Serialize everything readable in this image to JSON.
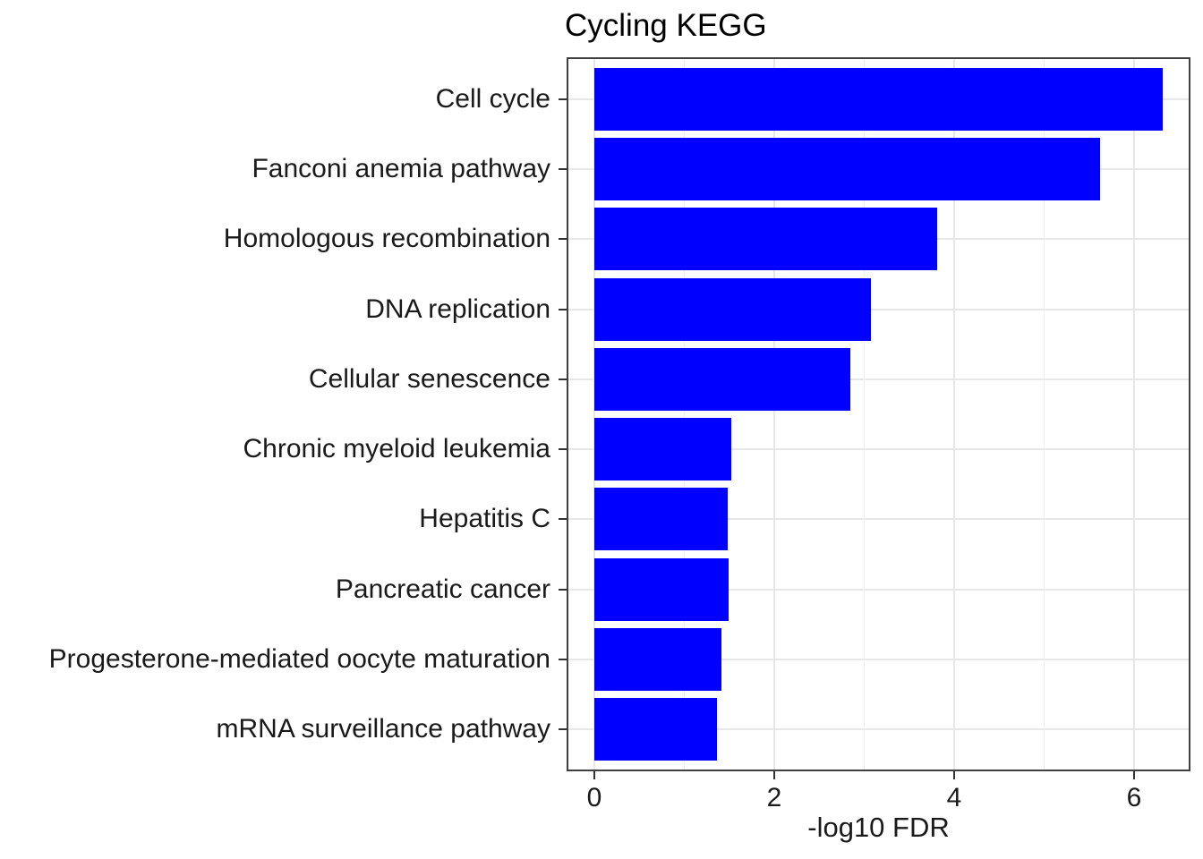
{
  "title": "Cycling KEGG",
  "chart_data": {
    "type": "bar",
    "orientation": "horizontal",
    "title": "Cycling KEGG",
    "xlabel": "-log10 FDR",
    "ylabel": "",
    "categories": [
      "Cell cycle",
      "Fanconi anemia pathway",
      "Homologous recombination",
      "DNA replication",
      "Cellular senescence",
      "Chronic myeloid leukemia",
      "Hepatitis C",
      "Pancreatic cancer",
      "Progesterone-mediated oocyte maturation",
      "mRNA surveillance pathway"
    ],
    "values": [
      6.32,
      5.62,
      3.81,
      3.07,
      2.85,
      1.52,
      1.48,
      1.49,
      1.41,
      1.36
    ],
    "x_tick_labels": [
      "0",
      "2",
      "4",
      "6"
    ],
    "x_ticks": [
      0,
      2,
      4,
      6
    ],
    "x_minor_gridlines": [
      1,
      3,
      5
    ],
    "xlim": [
      -0.31,
      6.63
    ],
    "grid": "on",
    "legend": "none",
    "bar_color": "#0000FF"
  },
  "colors": {
    "bar": "#0000FF",
    "grid_major": "#E7E7E7",
    "grid_minor": "#EFEFEF",
    "panel_border": "#404040",
    "tick": "#333333",
    "axis_text": "#1A1A1A",
    "title_text": "#000000",
    "background": "#FFFFFF"
  }
}
